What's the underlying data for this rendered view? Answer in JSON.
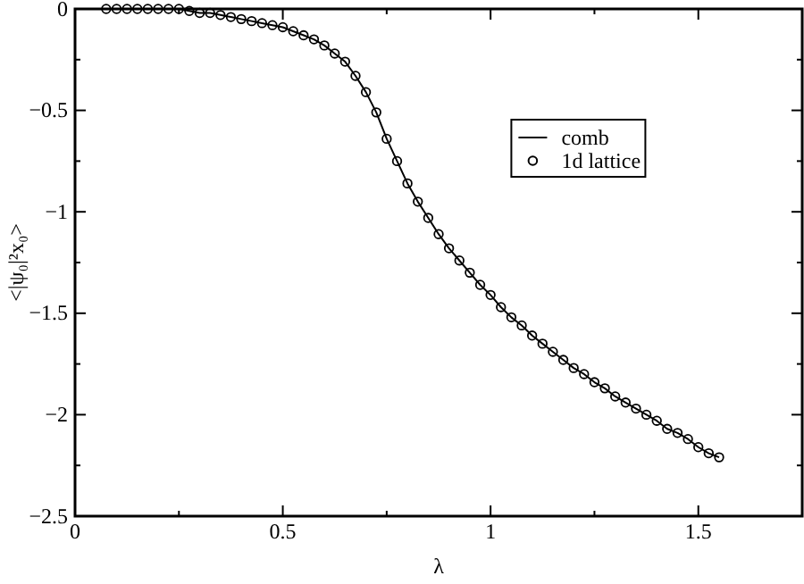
{
  "chart_data": {
    "type": "line",
    "xlabel": "λ",
    "ylabel": "<|ψ₀|²x₀>",
    "x": [
      0.075,
      0.1,
      0.125,
      0.15,
      0.175,
      0.2,
      0.225,
      0.25,
      0.275,
      0.3,
      0.325,
      0.35,
      0.375,
      0.4,
      0.425,
      0.45,
      0.475,
      0.5,
      0.525,
      0.55,
      0.575,
      0.6,
      0.625,
      0.65,
      0.675,
      0.7,
      0.725,
      0.75,
      0.775,
      0.8,
      0.825,
      0.85,
      0.875,
      0.9,
      0.925,
      0.95,
      0.975,
      1.0,
      1.025,
      1.05,
      1.075,
      1.1,
      1.125,
      1.15,
      1.175,
      1.2,
      1.225,
      1.25,
      1.275,
      1.3,
      1.325,
      1.35,
      1.375,
      1.4,
      1.425,
      1.45,
      1.475,
      1.5,
      1.525,
      1.55
    ],
    "series": [
      {
        "name": "comb",
        "color": "#000000",
        "marker": "none",
        "values": [
          0,
          0,
          0,
          0,
          0,
          0,
          0,
          0,
          -0.01,
          -0.02,
          -0.02,
          -0.03,
          -0.04,
          -0.05,
          -0.06,
          -0.07,
          -0.08,
          -0.09,
          -0.11,
          -0.13,
          -0.15,
          -0.18,
          -0.22,
          -0.26,
          -0.33,
          -0.41,
          -0.51,
          -0.64,
          -0.75,
          -0.86,
          -0.95,
          -1.03,
          -1.11,
          -1.18,
          -1.24,
          -1.3,
          -1.36,
          -1.41,
          -1.47,
          -1.52,
          -1.56,
          -1.61,
          -1.65,
          -1.69,
          -1.73,
          -1.77,
          -1.8,
          -1.84,
          -1.87,
          -1.91,
          -1.94,
          -1.97,
          -2.0,
          -2.03,
          -2.07,
          -2.09,
          -2.12,
          -2.16,
          -2.19,
          -2.21
        ]
      },
      {
        "name": "1d lattice",
        "type": "scatter",
        "color": "#000000",
        "marker": "circle",
        "values": [
          0,
          0,
          0,
          0,
          0,
          0,
          0,
          0,
          -0.01,
          -0.02,
          -0.02,
          -0.03,
          -0.04,
          -0.05,
          -0.06,
          -0.07,
          -0.08,
          -0.09,
          -0.11,
          -0.13,
          -0.15,
          -0.18,
          -0.22,
          -0.26,
          -0.33,
          -0.41,
          -0.51,
          -0.64,
          -0.75,
          -0.86,
          -0.95,
          -1.03,
          -1.11,
          -1.18,
          -1.24,
          -1.3,
          -1.36,
          -1.41,
          -1.47,
          -1.52,
          -1.56,
          -1.61,
          -1.65,
          -1.69,
          -1.73,
          -1.77,
          -1.8,
          -1.84,
          -1.87,
          -1.91,
          -1.94,
          -1.97,
          -2.0,
          -2.03,
          -2.07,
          -2.09,
          -2.12,
          -2.16,
          -2.19,
          -2.21
        ]
      }
    ],
    "xlim": [
      0,
      1.75
    ],
    "ylim": [
      -2.5,
      0
    ],
    "xticks": [
      0,
      {
        "value": 0.25,
        "label": null
      },
      0.5,
      {
        "value": 0.75,
        "label": null
      },
      1,
      {
        "value": 1.25,
        "label": null
      },
      1.5
    ],
    "yticks": [
      -2.5,
      {
        "value": -2.25,
        "label": null
      },
      -2,
      {
        "value": -1.75,
        "label": null
      },
      -1.5,
      {
        "value": -1.25,
        "label": null
      },
      -1,
      {
        "value": -0.75,
        "label": null
      },
      -0.5,
      {
        "value": -0.25,
        "label": null
      },
      0
    ],
    "legend": "top right"
  }
}
